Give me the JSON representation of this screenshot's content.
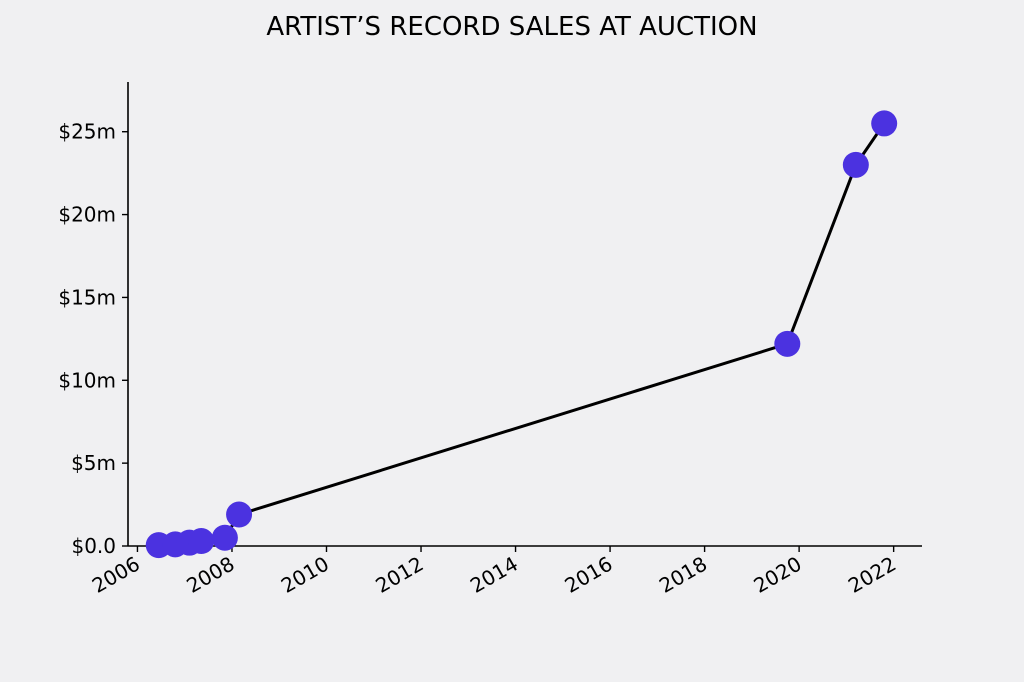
{
  "chart_data": {
    "type": "line",
    "title": "ARTIST’S RECORD SALES AT AUCTION",
    "xlabel": "",
    "ylabel": "",
    "x_ticks": [
      "2006",
      "2008",
      "2010",
      "2012",
      "2014",
      "2016",
      "2018",
      "2020",
      "2022"
    ],
    "y_ticks": [
      "$0.0",
      "$5m",
      "$10m",
      "$15m",
      "$20m",
      "$25m"
    ],
    "x_range": [
      2005.8,
      2022.6
    ],
    "y_range": [
      0,
      28
    ],
    "grid": false,
    "series": [
      {
        "points": [
          {
            "x": 2006.45,
            "y": 0.05
          },
          {
            "x": 2006.8,
            "y": 0.1
          },
          {
            "x": 2007.1,
            "y": 0.2
          },
          {
            "x": 2007.35,
            "y": 0.3
          },
          {
            "x": 2007.85,
            "y": 0.5
          },
          {
            "x": 2008.15,
            "y": 1.9
          },
          {
            "x": 2019.75,
            "y": 12.2
          },
          {
            "x": 2021.2,
            "y": 23.0
          },
          {
            "x": 2021.8,
            "y": 25.5
          }
        ]
      }
    ],
    "colors": {
      "marker": "#4b32e0",
      "line": "#000000"
    }
  }
}
